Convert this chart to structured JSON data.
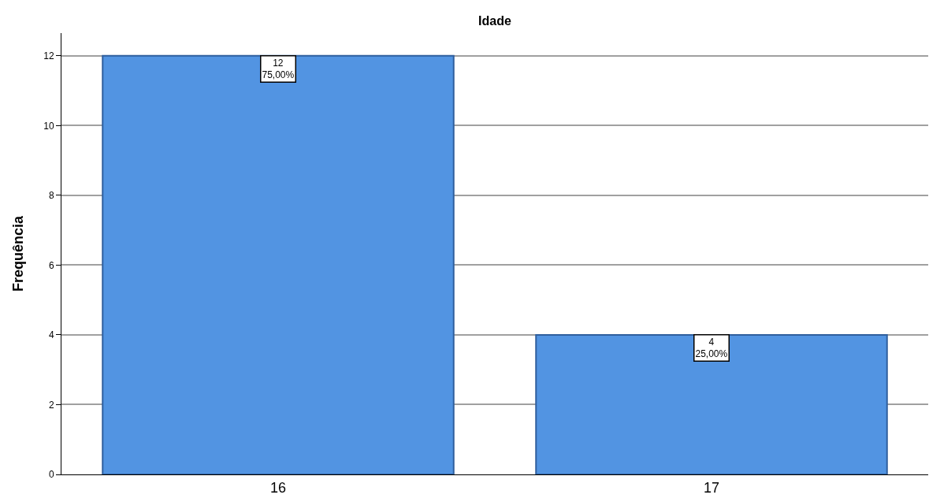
{
  "chart_data": {
    "type": "bar",
    "title": "Idade",
    "ylabel": "Frequência",
    "categories": [
      "16",
      "17"
    ],
    "values": [
      12,
      4
    ],
    "value_labels": [
      "12\n75,00%",
      "4\n25,00%"
    ],
    "color": "#5294e2",
    "ylim": [
      0,
      12.65
    ],
    "yticks": [
      0,
      2,
      4,
      6,
      8,
      10,
      12
    ],
    "grid": "y"
  }
}
